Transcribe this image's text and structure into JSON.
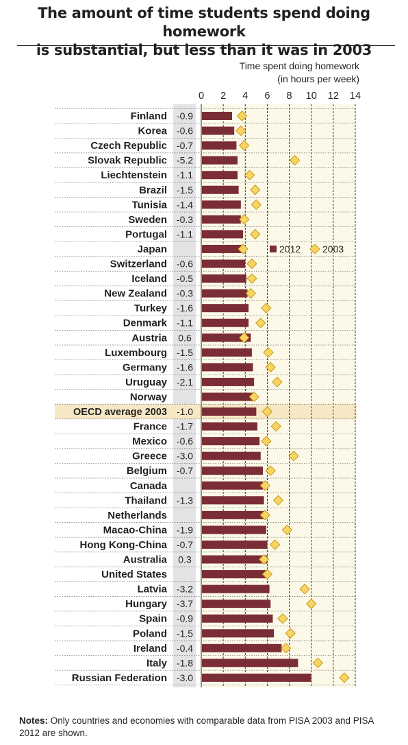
{
  "title": {
    "line1": "The amount of time students spend doing homework",
    "line2": "is substantial, but less than it was in 2003"
  },
  "colors": {
    "bar": "#7b2d35",
    "diamond": "#f7d463",
    "diamond_stroke": "#c49a16",
    "partner_label": "#7b2d35",
    "country_label": "#231f20",
    "plot_bg": "#fdf9e8",
    "diff_column_bg": "#e3e3e3",
    "oecd_highlight": "#f6e8c4"
  },
  "notes": {
    "label": "Notes:",
    "text": " Only countries and economies with comparable data from PISA 2003 and PISA 2012 are shown."
  },
  "chart_data": {
    "type": "bar",
    "orientation": "horizontal",
    "xlabel": "Time spent doing homework",
    "xlabel_unit": "(in hours per week)",
    "xlim": [
      0,
      14
    ],
    "xticks": [
      "0",
      "2",
      "4",
      "6",
      "8",
      "10",
      "12",
      "14"
    ],
    "grid": true,
    "legend_position": "right, beside Japan row",
    "legend": [
      {
        "label": "2012",
        "marker": "bar"
      },
      {
        "label": "2003",
        "marker": "diamond"
      }
    ],
    "categories": [
      "Finland",
      "Korea",
      "Czech Republic",
      "Slovak Republic",
      "Liechtenstein",
      "Brazil",
      "Tunisia",
      "Sweden",
      "Portugal",
      "Japan",
      "Switzerland",
      "Iceland",
      "New Zealand",
      "Turkey",
      "Denmark",
      "Austria",
      "Luxembourg",
      "Germany",
      "Uruguay",
      "Norway",
      "OECD average 2003",
      "France",
      "Mexico",
      "Greece",
      "Belgium",
      "Canada",
      "Thailand",
      "Netherlands",
      "Macao-China",
      "Hong Kong-China",
      "Australia",
      "United States",
      "Latvia",
      "Hungary",
      "Spain",
      "Poland",
      "Ireland",
      "Italy",
      "Russian Federation"
    ],
    "partner": [
      false,
      false,
      false,
      false,
      true,
      true,
      true,
      false,
      false,
      false,
      false,
      false,
      false,
      false,
      false,
      false,
      false,
      false,
      true,
      false,
      false,
      false,
      false,
      false,
      false,
      false,
      true,
      false,
      true,
      true,
      false,
      false,
      true,
      false,
      false,
      false,
      false,
      false,
      true
    ],
    "highlight": "OECD average 2003",
    "difference": [
      "-0.9",
      "-0.6",
      "-0.7",
      "-5.2",
      "-1.1",
      "-1.5",
      "-1.4",
      "-0.3",
      "-1.1",
      "",
      "-0.6",
      "-0.5",
      "-0.3",
      "-1.6",
      "-1.1",
      "0.6",
      "-1.5",
      "-1.6",
      "-2.1",
      "",
      "-1.0",
      "-1.7",
      "-0.6",
      "-3.0",
      "-0.7",
      "",
      "-1.3",
      "",
      "-1.9",
      "-0.7",
      "0.3",
      "",
      "-3.2",
      "-3.7",
      "-0.9",
      "-1.5",
      "-0.4",
      "-1.8",
      "-3.0"
    ],
    "series": [
      {
        "name": "2012",
        "values": [
          2.8,
          3.0,
          3.2,
          3.3,
          3.3,
          3.4,
          3.6,
          3.6,
          3.8,
          3.8,
          4.0,
          4.1,
          4.2,
          4.3,
          4.3,
          4.5,
          4.6,
          4.7,
          4.8,
          4.8,
          5.0,
          5.1,
          5.3,
          5.4,
          5.6,
          5.6,
          5.7,
          5.7,
          5.9,
          6.0,
          6.0,
          6.1,
          6.2,
          6.3,
          6.5,
          6.6,
          7.3,
          8.8,
          10.0
        ]
      },
      {
        "name": "2003",
        "values": [
          3.7,
          3.6,
          3.9,
          8.5,
          4.4,
          4.9,
          5.0,
          3.9,
          4.9,
          3.8,
          4.6,
          4.6,
          4.5,
          5.9,
          5.4,
          3.9,
          6.1,
          6.3,
          6.9,
          4.8,
          6.0,
          6.8,
          5.9,
          8.4,
          6.3,
          5.8,
          7.0,
          5.8,
          7.8,
          6.7,
          5.7,
          6.0,
          9.4,
          10.0,
          7.4,
          8.1,
          7.7,
          10.6,
          13.0
        ]
      }
    ]
  }
}
